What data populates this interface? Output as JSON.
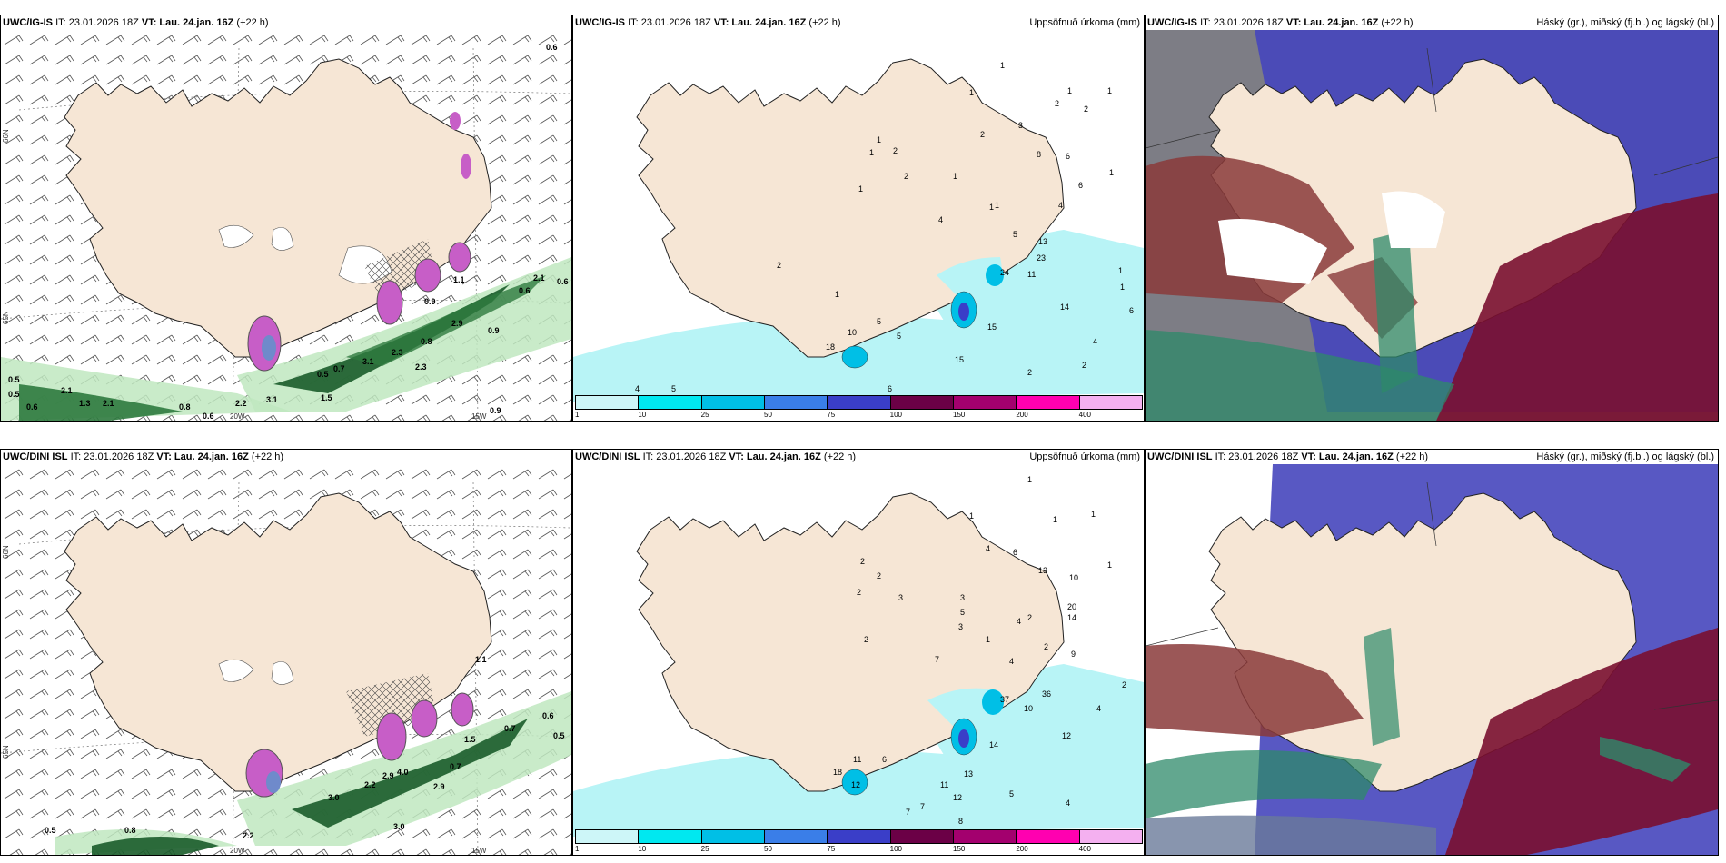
{
  "panels": [
    {
      "model": "UWC/IG-IS",
      "it": "IT: 23.01.2026 18Z",
      "vt_label": "VT:",
      "vt": "Lau. 24.jan. 16Z",
      "lead": "(+22 h)",
      "right": ""
    },
    {
      "model": "UWC/IG-IS",
      "it": "IT: 23.01.2026 18Z",
      "vt_label": "VT:",
      "vt": "Lau. 24.jan. 16Z",
      "lead": "(+22 h)",
      "right": "Uppsöfnuð úrkoma (mm)"
    },
    {
      "model": "UWC/IG-IS",
      "it": "IT: 23.01.2026 18Z",
      "vt_label": "VT:",
      "vt": "Lau. 24.jan. 16Z",
      "lead": "(+22 h)",
      "right": "Háský (gr.), miðský (fj.bl.) og lágský (bl.)"
    },
    {
      "model": "UWC/DINI ISL",
      "it": "IT: 23.01.2026 18Z",
      "vt_label": "VT:",
      "vt": "Lau. 24.jan. 16Z",
      "lead": "(+22 h)",
      "right": ""
    },
    {
      "model": "UWC/DINI ISL",
      "it": "IT: 23.01.2026 18Z",
      "vt_label": "VT:",
      "vt": "Lau. 24.jan. 16Z",
      "lead": "(+22 h)",
      "right": "Uppsöfnuð úrkoma (mm)"
    },
    {
      "model": "UWC/DINI ISL",
      "it": "IT: 23.01.2026 18Z",
      "vt_label": "VT:",
      "vt": "Lau. 24.jan. 16Z",
      "lead": "(+22 h)",
      "right": "Háský (gr.), miðský (fj.bl.) og lágský (bl.)"
    }
  ],
  "axes": {
    "lat66": "66N",
    "lat65": "65N",
    "lon20": "20W",
    "lon15": "15W"
  },
  "colorbar": {
    "ticks": [
      "1",
      "10",
      "25",
      "50",
      "75",
      "100",
      "150",
      "200",
      "400"
    ],
    "colors": [
      "#cdf6f8",
      "#00e8f0",
      "#00bfe6",
      "#3a7ee8",
      "#3a3ec8",
      "#6b0046",
      "#a3006e",
      "#ff00b0",
      "#f4b0f0"
    ]
  },
  "colors": {
    "land": "#f6e6d5",
    "sea": "#ffffff",
    "precip_light": "#b8f4f6",
    "snow_green": "#1a5c2a",
    "high_cloud": "#808080",
    "mid_cloud": "#3e3eb8",
    "low_cloud": "#7a1030"
  },
  "wind_panel_labels": {
    "top": [
      "0.6",
      "0.5",
      "0.5",
      "0.6",
      "2.1",
      "1.3",
      "2.1",
      "0.8",
      "0.6",
      "2.2",
      "3.1",
      "1.5",
      "0.5",
      "0.7",
      "3.1",
      "2.3",
      "2.3",
      "0.8",
      "0.9",
      "0.6",
      "0.9",
      "2.9",
      "0.6",
      "1.1",
      "0.9",
      "2.1"
    ],
    "bottom": [
      "0.5",
      "0.8",
      "2.2",
      "3.0",
      "3.0",
      "2.2",
      "2.9",
      "4.0",
      "0.7",
      "2.9",
      "0.7",
      "0.6",
      "0.5",
      "1.5",
      "1.1"
    ]
  },
  "precip_panel_labels": {
    "top": [
      "1",
      "1",
      "1",
      "1",
      "2",
      "2",
      "2",
      "2",
      "3",
      "8",
      "1",
      "2",
      "1",
      "4",
      "1",
      "1",
      "6",
      "4",
      "6",
      "5",
      "1",
      "24",
      "11",
      "23",
      "13",
      "1",
      "1",
      "6",
      "1",
      "14",
      "4",
      "15",
      "2",
      "2",
      "15",
      "12",
      "6",
      "10",
      "5",
      "5",
      "3",
      "5",
      "4",
      "1",
      "18",
      "2",
      "1"
    ],
    "bottom": [
      "1",
      "1",
      "1",
      "1",
      "2",
      "2",
      "2",
      "3",
      "4",
      "6",
      "13",
      "10",
      "20",
      "14",
      "1",
      "3",
      "5",
      "3",
      "7",
      "1",
      "4",
      "37",
      "10",
      "36",
      "14",
      "12",
      "4",
      "2",
      "2",
      "2",
      "4",
      "13",
      "11",
      "12",
      "7",
      "7",
      "8",
      "5",
      "6",
      "4",
      "3",
      "5",
      "3",
      "4",
      "6",
      "11",
      "18",
      "12",
      "5",
      "2",
      "9"
    ]
  }
}
